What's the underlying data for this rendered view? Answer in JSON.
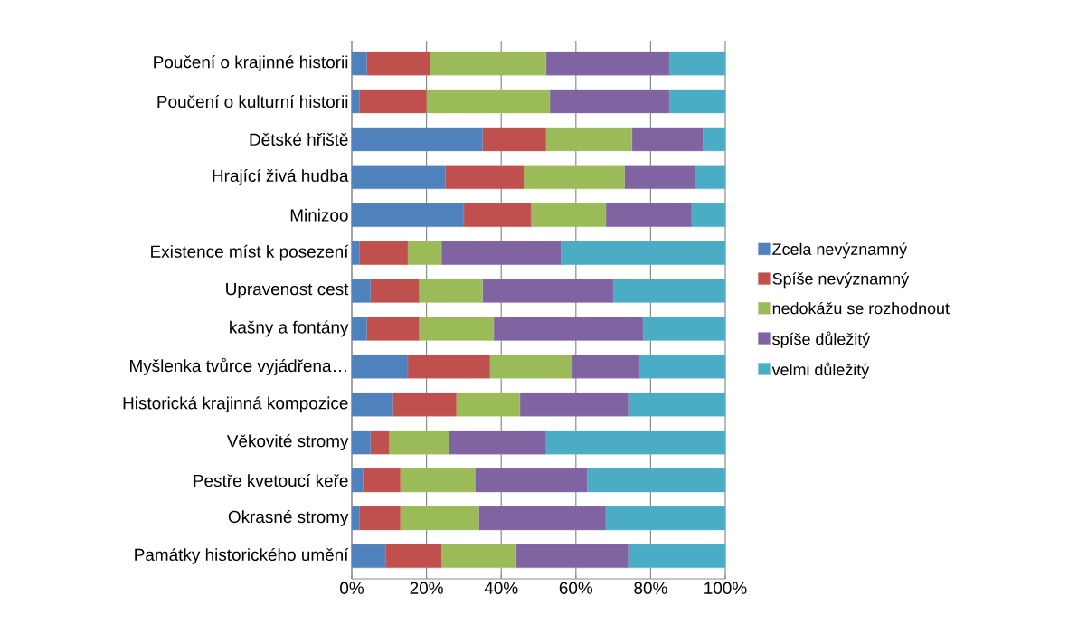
{
  "chart_data": {
    "type": "bar",
    "orientation": "horizontal",
    "stacked": true,
    "categories": [
      "Poučení o krajinné historii",
      "Poučení o kulturní historii",
      "Dětské hřiště",
      "Hrající živá hudba",
      "Minizoo",
      "Existence míst k posezení",
      "Upravenost cest",
      "kašny a fontány",
      "Myšlenka tvůrce vyjádřena…",
      "Historická krajinná kompozice",
      "Věkovité stromy",
      "Pestře kvetoucí keře",
      "Okrasné stromy",
      "Památky historického umění"
    ],
    "series": [
      {
        "name": "Zcela nevýznamný",
        "color": "#4f81bd",
        "values": [
          4,
          2,
          35,
          25,
          30,
          2,
          5,
          4,
          15,
          11,
          5,
          3,
          2,
          9
        ]
      },
      {
        "name": "Spíše nevýznamný",
        "color": "#c0504d",
        "values": [
          17,
          18,
          17,
          21,
          18,
          13,
          13,
          14,
          22,
          17,
          5,
          10,
          11,
          15
        ]
      },
      {
        "name": "nedokážu se rozhodnout",
        "color": "#9bbb59",
        "values": [
          31,
          33,
          23,
          27,
          20,
          9,
          17,
          20,
          22,
          17,
          16,
          20,
          21,
          20
        ]
      },
      {
        "name": "spíše důležitý",
        "color": "#8064a2",
        "values": [
          33,
          32,
          19,
          19,
          23,
          32,
          35,
          40,
          18,
          29,
          26,
          30,
          34,
          30
        ]
      },
      {
        "name": "velmi důležitý",
        "color": "#4bacc6",
        "values": [
          15,
          15,
          6,
          8,
          9,
          44,
          30,
          22,
          23,
          26,
          48,
          37,
          32,
          26
        ]
      }
    ],
    "xlim": [
      0,
      100
    ],
    "xticks": [
      {
        "value": 0,
        "label": "0%"
      },
      {
        "value": 20,
        "label": "20%"
      },
      {
        "value": 40,
        "label": "40%"
      },
      {
        "value": 60,
        "label": "60%"
      },
      {
        "value": 80,
        "label": "80%"
      },
      {
        "value": 100,
        "label": "100%"
      }
    ],
    "grid": "x",
    "legend": "right"
  }
}
